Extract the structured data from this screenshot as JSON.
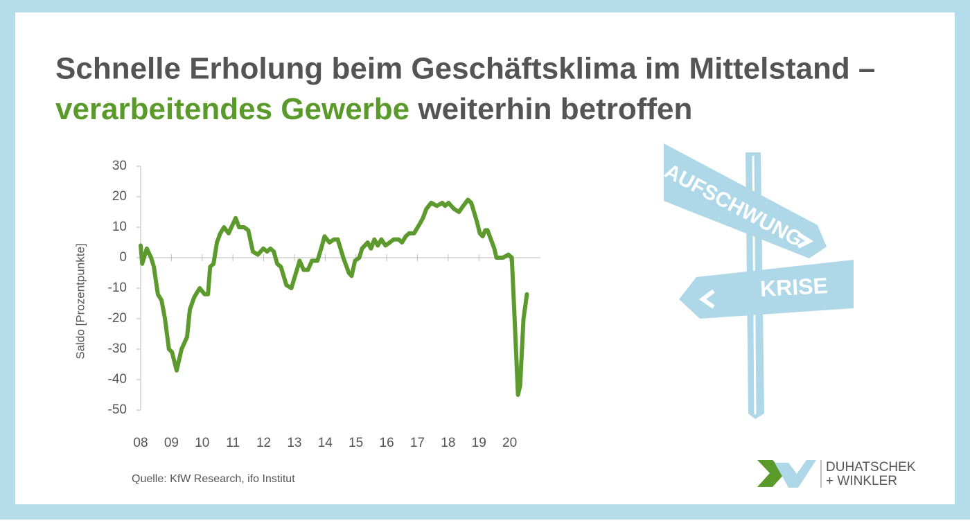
{
  "header": {
    "title_line1": "Schnelle Erholung beim Geschäftsklima im Mittelstand –",
    "title_line2_highlight": "verarbeitendes Gewerbe",
    "title_line2_rest": "weiterhin betroffen"
  },
  "chart_data": {
    "type": "line",
    "y_label": "Saldo [Prozentpunkte]",
    "color": "#5c9a2e",
    "x": [
      2008.0,
      2008.05,
      2008.2,
      2008.34,
      2008.43,
      2008.56,
      2008.68,
      2008.79,
      2008.92,
      2009.02,
      2009.17,
      2009.33,
      2009.51,
      2009.6,
      2009.74,
      2009.92,
      2010.08,
      2010.19,
      2010.26,
      2010.37,
      2010.48,
      2010.59,
      2010.71,
      2010.86,
      2011.09,
      2011.2,
      2011.36,
      2011.5,
      2011.65,
      2011.81,
      2011.99,
      2012.11,
      2012.22,
      2012.33,
      2012.44,
      2012.56,
      2012.74,
      2012.9,
      2013.05,
      2013.17,
      2013.3,
      2013.44,
      2013.57,
      2013.75,
      2013.87,
      2013.98,
      2014.14,
      2014.29,
      2014.41,
      2014.59,
      2014.77,
      2014.86,
      2014.97,
      2015.11,
      2015.2,
      2015.38,
      2015.49,
      2015.6,
      2015.71,
      2015.83,
      2015.96,
      2016.1,
      2016.23,
      2016.39,
      2016.5,
      2016.62,
      2016.73,
      2016.89,
      2017.07,
      2017.18,
      2017.29,
      2017.45,
      2017.63,
      2017.81,
      2017.9,
      2018.01,
      2018.19,
      2018.35,
      2018.49,
      2018.64,
      2018.75,
      2018.93,
      2019.03,
      2019.12,
      2019.21,
      2019.28,
      2019.39,
      2019.5,
      2019.57,
      2019.78,
      2019.96,
      2020.07,
      2020.16,
      2020.27,
      2020.34,
      2020.45,
      2020.56
    ],
    "values": [
      4,
      -2,
      3,
      0,
      -3,
      -12,
      -14,
      -20,
      -30,
      -31,
      -37,
      -30,
      -26,
      -17,
      -13,
      -10,
      -12,
      -12,
      -3,
      -2,
      5,
      8,
      10,
      8,
      13,
      10,
      10,
      9,
      2,
      1,
      3,
      2,
      3,
      2,
      -2,
      -3,
      -9,
      -10,
      -5,
      -1,
      -4,
      -4,
      -1,
      -1,
      3,
      7,
      5,
      6,
      6,
      0,
      -5,
      -6,
      -1,
      0,
      3,
      5,
      3,
      6,
      4,
      6,
      4,
      5,
      6,
      6,
      5,
      7,
      8,
      8,
      11,
      13,
      16,
      18,
      17,
      18,
      17,
      18,
      16,
      15,
      17,
      19,
      18,
      12,
      8,
      7,
      9,
      9,
      6,
      3,
      0,
      0,
      1,
      0,
      -20,
      -45,
      -42,
      -20,
      -12
    ],
    "xlim": [
      2008,
      2021
    ],
    "xticks": [
      {
        "value": 2008,
        "label": "08"
      },
      {
        "value": 2009,
        "label": "09"
      },
      {
        "value": 2010,
        "label": "10"
      },
      {
        "value": 2011,
        "label": "11"
      },
      {
        "value": 2012,
        "label": "12"
      },
      {
        "value": 2013,
        "label": "13"
      },
      {
        "value": 2014,
        "label": "14"
      },
      {
        "value": 2015,
        "label": "15"
      },
      {
        "value": 2016,
        "label": "16"
      },
      {
        "value": 2017,
        "label": "17"
      },
      {
        "value": 2018,
        "label": "18"
      },
      {
        "value": 2019,
        "label": "19"
      },
      {
        "value": 2020,
        "label": "20"
      }
    ],
    "ylim": [
      -50,
      30
    ],
    "yticks": [
      30,
      20,
      10,
      0,
      -10,
      -20,
      -30,
      -40,
      -50
    ]
  },
  "source": "Quelle: KfW Research, ifo Institut",
  "signpost": {
    "up": "AUFSCHWUNG",
    "down": "KRISE"
  },
  "logo": {
    "line1": "DUHATSCHEK",
    "line2": "+ WINKLER"
  }
}
